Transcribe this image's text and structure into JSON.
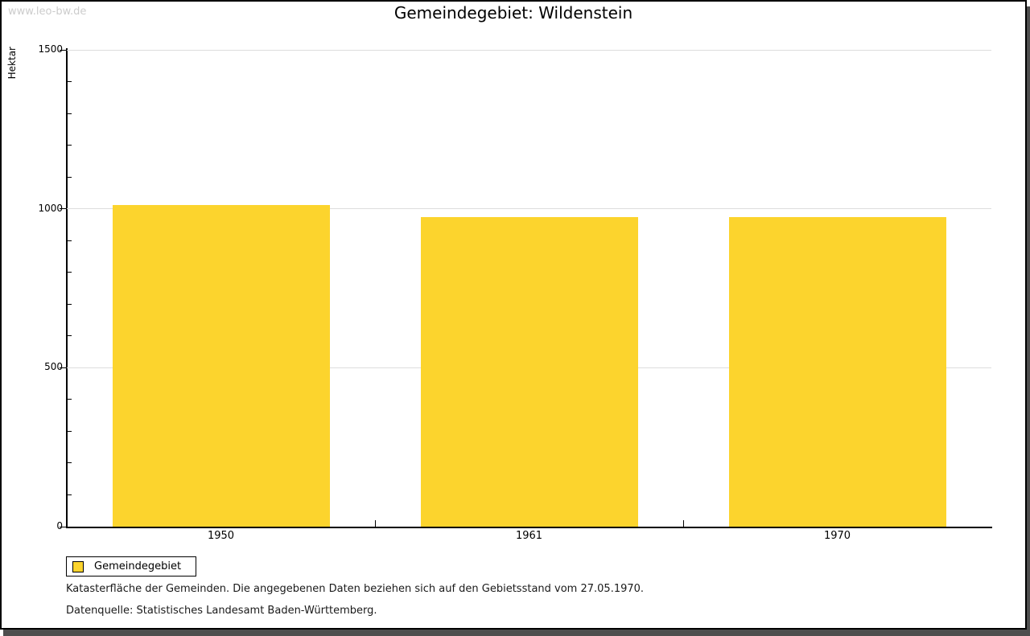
{
  "watermark": "www.leo-bw.de",
  "title": "Gemeindegebiet: Wildenstein",
  "chart_data": {
    "type": "bar",
    "title": "Gemeindegebiet: Wildenstein",
    "categories": [
      "1950",
      "1961",
      "1970"
    ],
    "series": [
      {
        "name": "Gemeindegebiet",
        "values": [
          1013,
          975,
          975
        ]
      }
    ],
    "xlabel": "",
    "ylabel": "Hektar",
    "ylim": [
      0,
      1500
    ],
    "yticks_major": [
      0,
      500,
      1000,
      1500
    ],
    "ytick_minor_step": 100,
    "grid": true,
    "legend_position": "bottom-left",
    "bar_color": "#FCD42D",
    "gridline_color": "#DDDDDD"
  },
  "legend": {
    "items": [
      {
        "label": "Gemeindegebiet",
        "color": "#FCD42D"
      }
    ]
  },
  "footnotes": [
    "Katasterfläche der Gemeinden. Die angegebenen Daten beziehen sich auf den Gebietsstand vom 27.05.1970.",
    "Datenquelle: Statistisches Landesamt Baden-Württemberg."
  ]
}
